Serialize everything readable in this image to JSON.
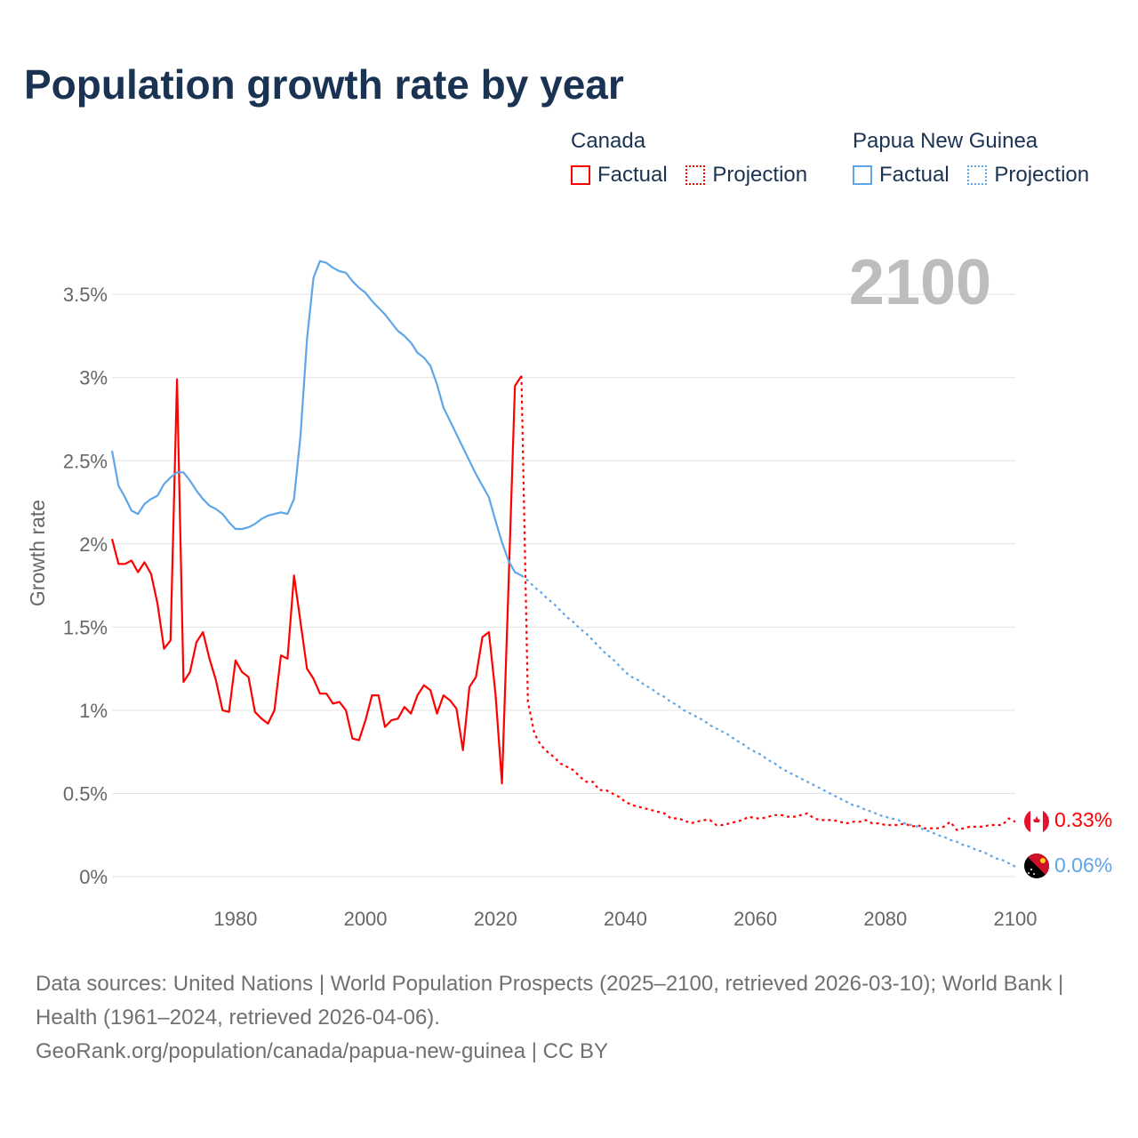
{
  "title": "Population growth rate by year",
  "legend": {
    "groups": [
      {
        "country": "Canada",
        "factual": "Factual",
        "projection": "Projection",
        "color": "#ff0000"
      },
      {
        "country": "Papua New Guinea",
        "factual": "Factual",
        "projection": "Projection",
        "color": "#5ea6e8"
      }
    ]
  },
  "current_year_label": "2100",
  "end_labels": {
    "canada": "0.33%",
    "png": "0.06%"
  },
  "footer": {
    "sources": "Data sources: United Nations | World Population Prospects (2025–2100, retrieved 2026-03-10); World Bank | Health (1961–2024, retrieved 2026-04-06).",
    "credit": "GeoRank.org/population/canada/papua-new-guinea | CC BY"
  },
  "chart_data": {
    "type": "line",
    "title": "Population growth rate by year",
    "xlabel": "",
    "ylabel": "Growth rate",
    "xlim": [
      1961,
      2100
    ],
    "ylim": [
      0,
      3.75
    ],
    "x_ticks": [
      1980,
      2000,
      2020,
      2040,
      2060,
      2080,
      2100
    ],
    "x_tick_labels": [
      "1980",
      "2000",
      "2020",
      "2040",
      "2060",
      "2080",
      "2100"
    ],
    "y_ticks": [
      0,
      0.5,
      1,
      1.5,
      2,
      2.5,
      3,
      3.5
    ],
    "y_tick_labels": [
      "0%",
      "0.5%",
      "1%",
      "1.5%",
      "2%",
      "2.5%",
      "3%",
      "3.5%"
    ],
    "grid": true,
    "legend_position": "top-right",
    "series": [
      {
        "name": "Canada Factual",
        "color": "#ff0000",
        "dashed": false,
        "start_year": 1961,
        "values": [
          2.03,
          1.88,
          1.88,
          1.9,
          1.83,
          1.89,
          1.82,
          1.64,
          1.37,
          1.42,
          2.99,
          1.17,
          1.23,
          1.41,
          1.47,
          1.31,
          1.18,
          1.0,
          0.99,
          1.3,
          1.23,
          1.2,
          0.99,
          0.95,
          0.92,
          1.0,
          1.33,
          1.31,
          1.81,
          1.53,
          1.25,
          1.19,
          1.1,
          1.1,
          1.04,
          1.05,
          1.0,
          0.83,
          0.82,
          0.94,
          1.09,
          1.09,
          0.9,
          0.94,
          0.95,
          1.02,
          0.98,
          1.09,
          1.15,
          1.12,
          0.98,
          1.09,
          1.06,
          1.01,
          0.76,
          1.14,
          1.2,
          1.44,
          1.47,
          1.1,
          0.56,
          1.74,
          2.95,
          3.01
        ]
      },
      {
        "name": "Canada Projection",
        "color": "#ff0000",
        "dashed": true,
        "start_year": 2024,
        "values": [
          3.01,
          1.05,
          0.86,
          0.79,
          0.75,
          0.72,
          0.68,
          0.66,
          0.64,
          0.6,
          0.57,
          0.57,
          0.52,
          0.52,
          0.5,
          0.48,
          0.45,
          0.43,
          0.42,
          0.41,
          0.4,
          0.39,
          0.38,
          0.35,
          0.35,
          0.34,
          0.32,
          0.33,
          0.34,
          0.34,
          0.31,
          0.31,
          0.32,
          0.33,
          0.34,
          0.36,
          0.35,
          0.35,
          0.36,
          0.37,
          0.37,
          0.36,
          0.36,
          0.37,
          0.38,
          0.35,
          0.34,
          0.34,
          0.34,
          0.33,
          0.32,
          0.33,
          0.33,
          0.34,
          0.32,
          0.32,
          0.31,
          0.31,
          0.31,
          0.32,
          0.3,
          0.31,
          0.29,
          0.29,
          0.29,
          0.3,
          0.33,
          0.28,
          0.29,
          0.3,
          0.3,
          0.3,
          0.31,
          0.31,
          0.31,
          0.35,
          0.33
        ]
      },
      {
        "name": "Papua New Guinea Factual",
        "color": "#5ea6e8",
        "dashed": false,
        "start_year": 1961,
        "values": [
          2.56,
          2.35,
          2.28,
          2.2,
          2.18,
          2.24,
          2.27,
          2.29,
          2.36,
          2.4,
          2.43,
          2.43,
          2.38,
          2.32,
          2.27,
          2.23,
          2.21,
          2.18,
          2.13,
          2.09,
          2.09,
          2.1,
          2.12,
          2.15,
          2.17,
          2.18,
          2.19,
          2.18,
          2.27,
          2.65,
          3.23,
          3.6,
          3.7,
          3.69,
          3.66,
          3.64,
          3.63,
          3.58,
          3.54,
          3.51,
          3.46,
          3.42,
          3.38,
          3.33,
          3.28,
          3.25,
          3.21,
          3.15,
          3.12,
          3.07,
          2.96,
          2.82,
          2.74,
          2.66,
          2.58,
          2.5,
          2.42,
          2.35,
          2.28,
          2.14,
          2.01,
          1.9,
          1.83,
          1.81
        ]
      },
      {
        "name": "Papua New Guinea Projection",
        "color": "#5ea6e8",
        "dashed": true,
        "start_year": 2024,
        "values": [
          1.81,
          1.78,
          1.74,
          1.71,
          1.67,
          1.64,
          1.6,
          1.56,
          1.53,
          1.49,
          1.46,
          1.42,
          1.38,
          1.34,
          1.31,
          1.27,
          1.23,
          1.2,
          1.18,
          1.15,
          1.13,
          1.1,
          1.08,
          1.05,
          1.03,
          1.0,
          0.98,
          0.96,
          0.94,
          0.91,
          0.89,
          0.87,
          0.85,
          0.82,
          0.8,
          0.77,
          0.75,
          0.73,
          0.7,
          0.68,
          0.65,
          0.63,
          0.61,
          0.59,
          0.57,
          0.55,
          0.53,
          0.51,
          0.49,
          0.47,
          0.45,
          0.43,
          0.42,
          0.4,
          0.39,
          0.37,
          0.36,
          0.35,
          0.34,
          0.32,
          0.31,
          0.3,
          0.28,
          0.27,
          0.25,
          0.24,
          0.22,
          0.21,
          0.19,
          0.18,
          0.16,
          0.15,
          0.13,
          0.11,
          0.1,
          0.08,
          0.06
        ]
      }
    ]
  }
}
